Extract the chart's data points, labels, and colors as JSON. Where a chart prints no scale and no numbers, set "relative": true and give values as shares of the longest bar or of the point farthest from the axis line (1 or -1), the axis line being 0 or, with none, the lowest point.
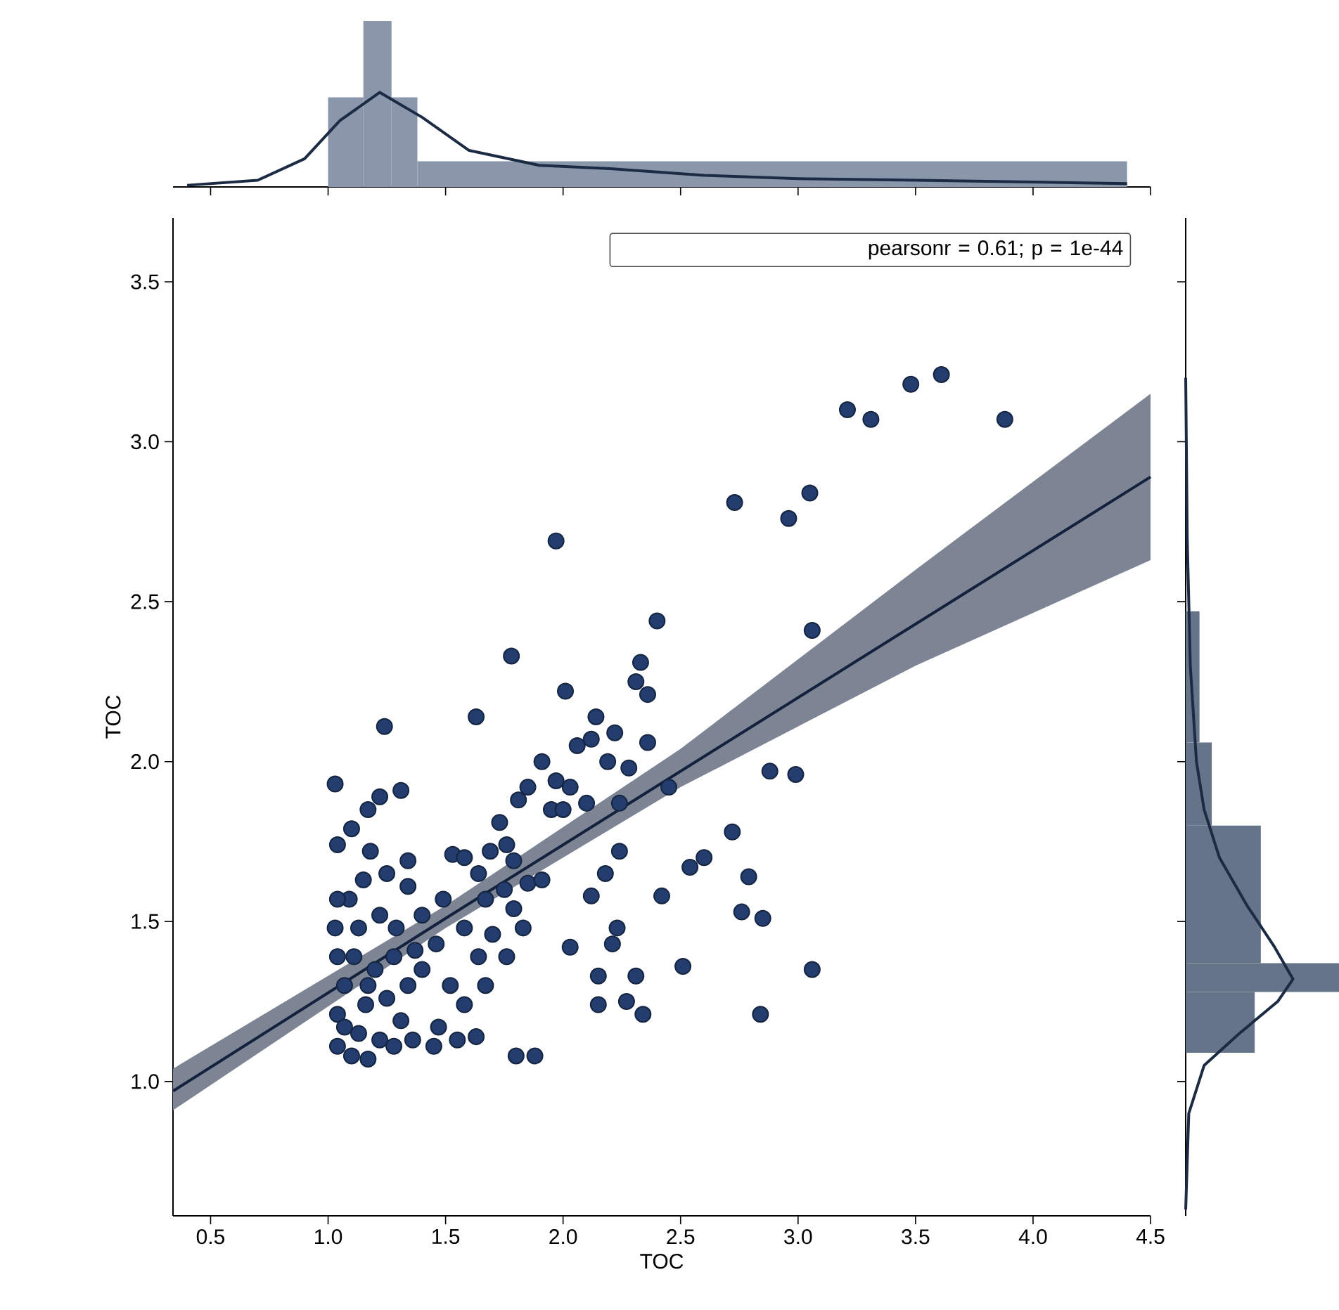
{
  "chart_data": [
    {
      "type": "histogram",
      "relative": true,
      "xlim": [
        0.34,
        4.5
      ],
      "xticks": [
        0.5,
        {
          "value": 1.0,
          "label": null
        },
        1.5,
        {
          "value": 2.0,
          "label": null
        },
        2.5,
        {
          "value": 3.0,
          "label": null
        },
        3.5,
        {
          "value": 4.0,
          "label": null
        },
        4.5
      ],
      "tick_labels": false,
      "series": [
        {
          "color": "#8a97ab",
          "bins": [
            1.0,
            1.15,
            1.27,
            1.38,
            4.4
          ],
          "values": [
            0.54,
            1.0,
            0.54,
            0.155
          ]
        },
        {
          "type": "line",
          "color": "#1c2b44",
          "x": [
            0.4,
            0.7,
            0.9,
            1.05,
            1.22,
            1.4,
            1.6,
            1.9,
            2.2,
            2.6,
            3.0,
            3.5,
            4.0,
            4.4
          ],
          "values": [
            0.01,
            0.04,
            0.17,
            0.4,
            0.57,
            0.42,
            0.22,
            0.13,
            0.11,
            0.07,
            0.05,
            0.04,
            0.03,
            0.02
          ]
        }
      ]
    },
    {
      "type": "scatter",
      "xlabel": "TOC",
      "ylabel": "TOC",
      "annotations": [
        "pearsonr = 0.61; p = 1e-44"
      ],
      "xlim": [
        0.34,
        4.5
      ],
      "ylim": [
        0.58,
        3.7
      ],
      "xticks": [
        0.5,
        {
          "value": 1.0,
          "label": "1.0"
        },
        1.5,
        {
          "value": 2.0,
          "label": "2.0"
        },
        2.5,
        {
          "value": 3.0,
          "label": "3.0"
        },
        3.5,
        {
          "value": 4.0,
          "label": "4.0"
        },
        4.5
      ],
      "yticks": [
        {
          "value": 1.0,
          "label": "1.0"
        },
        1.5,
        {
          "value": 2.0,
          "label": "2.0"
        },
        2.5,
        {
          "value": 3.0,
          "label": "3.0"
        },
        3.5
      ],
      "series": [
        {
          "marker": "circle",
          "color": "#233e6e",
          "x": [
            3.21,
            3.31,
            3.48,
            3.61,
            3.88,
            2.73,
            2.96,
            3.05,
            3.06,
            1.97,
            1.78,
            2.4,
            1.63,
            1.24,
            2.01,
            3.06,
            2.84,
            2.51,
            2.72,
            2.88,
            2.99,
            2.79,
            2.76,
            2.85,
            2.34,
            2.27,
            2.15,
            2.15,
            2.31,
            2.23,
            2.21,
            2.42,
            2.54,
            2.6,
            2.45,
            2.24,
            2.12,
            2.18,
            2.03,
            1.8,
            1.88,
            1.63,
            2.06,
            2.12,
            2.19,
            2.22,
            2.14,
            2.31,
            2.33,
            2.36,
            2.36,
            2.24,
            2.28,
            1.91,
            1.85,
            1.97,
            2.03,
            1.95,
            2.0,
            1.81,
            2.1,
            1.73,
            1.76,
            1.69,
            1.64,
            1.79,
            1.85,
            1.91,
            1.75,
            1.53,
            1.58,
            1.67,
            1.49,
            1.4,
            1.58,
            1.7,
            1.46,
            1.64,
            1.76,
            1.83,
            1.79,
            1.34,
            1.4,
            1.52,
            1.58,
            1.67,
            1.47,
            1.55,
            1.45,
            1.03,
            1.04,
            1.1,
            1.17,
            1.22,
            1.31,
            1.09,
            1.15,
            1.25,
            1.34,
            1.18,
            1.04,
            1.03,
            1.13,
            1.22,
            1.28,
            1.07,
            1.17,
            1.25,
            1.34,
            1.04,
            1.13,
            1.22,
            1.04,
            1.1,
            1.17,
            1.28,
            1.36,
            1.07,
            1.31,
            1.2,
            1.11,
            1.29,
            1.37,
            1.16,
            1.04
          ],
          "values": [
            3.1,
            3.07,
            3.18,
            3.21,
            3.07,
            2.81,
            2.76,
            2.84,
            2.41,
            2.69,
            2.33,
            2.44,
            2.14,
            2.11,
            2.22,
            1.35,
            1.21,
            1.36,
            1.78,
            1.97,
            1.96,
            1.64,
            1.53,
            1.51,
            1.21,
            1.25,
            1.24,
            1.33,
            1.33,
            1.48,
            1.43,
            1.58,
            1.67,
            1.7,
            1.92,
            1.72,
            1.58,
            1.65,
            1.42,
            1.08,
            1.08,
            1.14,
            2.05,
            2.07,
            2.0,
            2.09,
            2.14,
            2.25,
            2.31,
            2.21,
            2.06,
            1.87,
            1.98,
            2.0,
            1.92,
            1.94,
            1.92,
            1.85,
            1.85,
            1.88,
            1.87,
            1.81,
            1.74,
            1.72,
            1.65,
            1.69,
            1.62,
            1.63,
            1.6,
            1.71,
            1.7,
            1.57,
            1.57,
            1.52,
            1.48,
            1.46,
            1.43,
            1.39,
            1.39,
            1.48,
            1.54,
            1.61,
            1.35,
            1.3,
            1.24,
            1.3,
            1.17,
            1.13,
            1.11,
            1.93,
            1.74,
            1.79,
            1.85,
            1.89,
            1.91,
            1.57,
            1.63,
            1.65,
            1.69,
            1.72,
            1.39,
            1.48,
            1.48,
            1.52,
            1.39,
            1.3,
            1.3,
            1.26,
            1.3,
            1.21,
            1.15,
            1.13,
            1.11,
            1.08,
            1.07,
            1.11,
            1.13,
            1.17,
            1.19,
            1.35,
            1.39,
            1.48,
            1.41,
            1.24,
            1.57
          ]
        },
        {
          "type": "line",
          "color": "#13213d",
          "x": [
            0.34,
            1.5,
            2.5,
            3.5,
            4.5
          ],
          "values": [
            0.97,
            1.51,
            1.97,
            2.43,
            2.89
          ],
          "lower": [
            0.91,
            1.48,
            1.92,
            2.3,
            2.63
          ],
          "upper": [
            1.04,
            1.55,
            2.04,
            2.6,
            3.15
          ]
        }
      ]
    },
    {
      "type": "histogram",
      "relative": true,
      "orientation": "horizontal",
      "ylim": [
        0.58,
        3.7
      ],
      "yticks": [
        {
          "value": 1.0,
          "label": null
        },
        {
          "value": 1.5,
          "label": null
        },
        {
          "value": 2.0,
          "label": null
        },
        {
          "value": 2.5,
          "label": null
        },
        {
          "value": 3.0,
          "label": null
        },
        {
          "value": 3.5,
          "label": null
        }
      ],
      "tick_labels": false,
      "series": [
        {
          "color": "#66748a",
          "bins": [
            1.09,
            1.28,
            1.37,
            1.8,
            2.06,
            2.47
          ],
          "values": [
            0.45,
            1.0,
            0.49,
            0.17,
            0.09
          ]
        },
        {
          "type": "line",
          "color": "#1c2b44",
          "x": [
            0.6,
            0.9,
            1.05,
            1.15,
            1.25,
            1.32,
            1.42,
            1.55,
            1.7,
            1.85,
            2.0,
            2.3,
            2.7,
            3.2
          ],
          "values": [
            0.0,
            0.02,
            0.12,
            0.35,
            0.6,
            0.7,
            0.58,
            0.4,
            0.22,
            0.12,
            0.07,
            0.03,
            0.01,
            0.0
          ]
        }
      ]
    }
  ]
}
